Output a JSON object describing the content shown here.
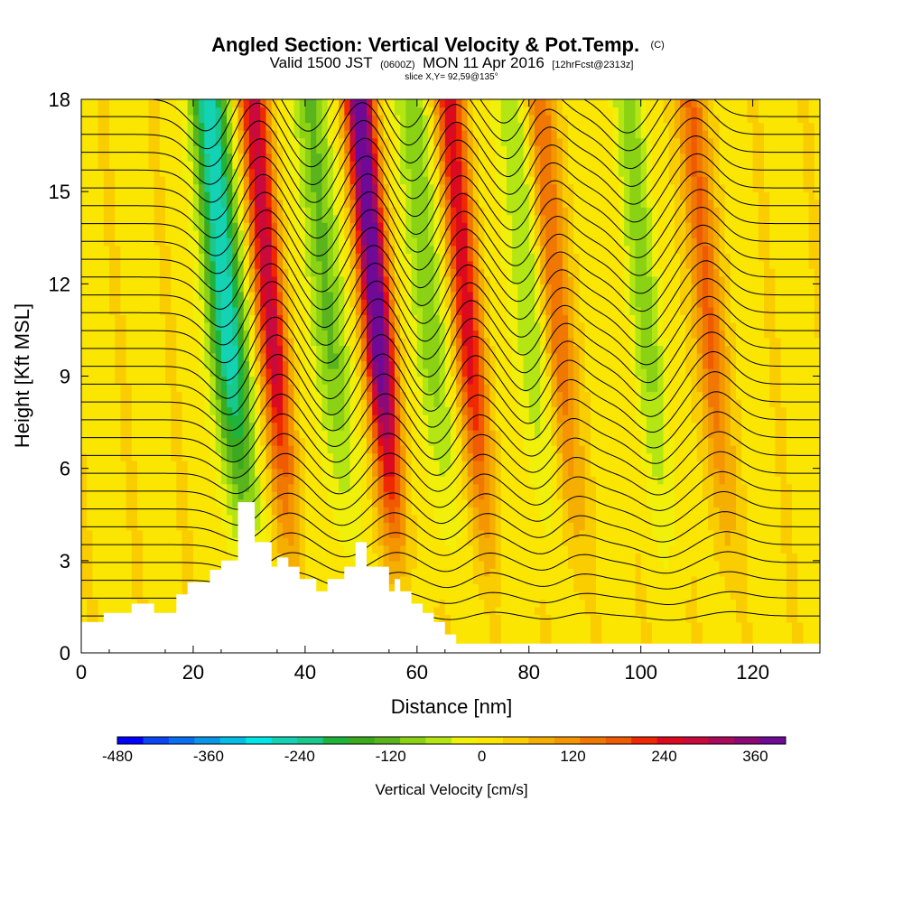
{
  "title": {
    "main": "Angled Section: Vertical Velocity & Pot.Temp.",
    "main_unit": "(C)",
    "valid_prefix": "Valid 1500 JST",
    "valid_utc": "(0600Z)",
    "valid_date": "MON 11 Apr 2016",
    "forecast": "[12hrFcst@2313z]",
    "slice": "slice X,Y= 92,59@135°"
  },
  "chart_data": {
    "type": "heatmap",
    "xlabel": "Distance [nm]",
    "ylabel": "Height [Kft MSL]",
    "xlim": [
      0,
      132
    ],
    "ylim": [
      0,
      18
    ],
    "x_ticks": [
      0,
      20,
      40,
      60,
      80,
      100,
      120
    ],
    "y_ticks": [
      0,
      3,
      6,
      9,
      12,
      15,
      18
    ],
    "shaded_field": "Vertical Velocity",
    "contour_field": "Potential Temperature (C)",
    "contour_lines_count": 30,
    "terrain_profile": {
      "x": [
        0,
        4,
        4,
        9,
        9,
        13,
        13,
        17,
        17,
        19,
        19,
        23,
        23,
        25,
        25,
        28,
        28,
        31,
        31,
        34,
        34,
        35,
        35,
        37,
        37,
        39,
        39,
        42,
        42,
        44,
        44,
        47,
        47,
        49,
        49,
        51,
        51,
        55,
        55,
        56,
        56,
        57,
        57,
        59,
        59,
        61,
        61,
        63,
        63,
        65,
        65,
        67,
        67,
        71,
        71,
        132
      ],
      "h": [
        1.0,
        1.0,
        1.3,
        1.3,
        1.6,
        1.6,
        1.3,
        1.3,
        1.9,
        1.9,
        2.3,
        2.3,
        2.7,
        2.7,
        3.0,
        3.0,
        4.9,
        4.9,
        3.6,
        3.6,
        2.8,
        2.8,
        3.1,
        3.1,
        2.8,
        2.8,
        2.4,
        2.4,
        2.0,
        2.0,
        2.4,
        2.4,
        2.8,
        2.8,
        3.6,
        3.6,
        2.8,
        2.8,
        2.0,
        2.0,
        2.4,
        2.4,
        2.0,
        2.0,
        1.6,
        1.6,
        1.3,
        1.3,
        1.0,
        1.0,
        0.6,
        0.6,
        0.3,
        0.3,
        0.3,
        0.3
      ]
    },
    "updraft_bands": [
      {
        "x": 37,
        "peak": 260
      },
      {
        "x": 56,
        "peak": 400
      },
      {
        "x": 72,
        "peak": 230
      },
      {
        "x": 88,
        "peak": 150
      },
      {
        "x": 115,
        "peak": 150
      }
    ],
    "downdraft_bands": [
      {
        "x": 29,
        "peak": -300
      },
      {
        "x": 47,
        "peak": -140
      },
      {
        "x": 65,
        "peak": -120
      },
      {
        "x": 83,
        "peak": -100
      },
      {
        "x": 104,
        "peak": -100
      }
    ]
  },
  "colorbar": {
    "title": "Vertical Velocity [cm/s]",
    "labels": [
      "-480",
      "-360",
      "-240",
      "-120",
      "0",
      "120",
      "240",
      "360"
    ],
    "colors": [
      "#0000ff",
      "#0a46f5",
      "#0a6ef0",
      "#0a96e6",
      "#00bee6",
      "#00e6e6",
      "#14d2b4",
      "#18c88c",
      "#1eb43c",
      "#3caa1e",
      "#5ab41e",
      "#8cd214",
      "#b4e614",
      "#f0f00a",
      "#fae600",
      "#facd00",
      "#f5af00",
      "#f59600",
      "#f07800",
      "#f05a00",
      "#f02800",
      "#dc0a1e",
      "#c80a3c",
      "#aa0a5a",
      "#8c0a78",
      "#6e0a96"
    ]
  }
}
